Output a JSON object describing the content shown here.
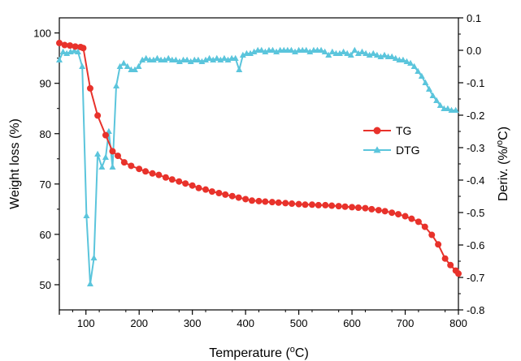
{
  "chart_data": {
    "type": "line",
    "title": "",
    "xlabel": {
      "base": "Temperature (",
      "sup": "o",
      "tail": "C)"
    },
    "ylabel_left": "Weight loss (%)",
    "ylabel_right": {
      "base": "Deriv. (%/",
      "sup": "o",
      "tail": "C)"
    },
    "xlim": [
      50,
      800
    ],
    "ylim_left": [
      45,
      103
    ],
    "ylim_right": [
      -0.8,
      0.1
    ],
    "x_ticks": [
      100,
      200,
      300,
      400,
      500,
      600,
      700,
      800
    ],
    "x_ticks_unlabeled": [
      50
    ],
    "y_left_ticks": [
      50,
      60,
      70,
      80,
      90,
      100
    ],
    "y_right_ticks": [
      "-0.8",
      "-0.7",
      "-0.6",
      "-0.5",
      "-0.4",
      "-0.3",
      "-0.2",
      "-0.1",
      "0.0",
      "0.1"
    ],
    "legend_position": "right",
    "grid": false,
    "series": [
      {
        "name": "TG",
        "axis": "left",
        "color": "#e8322b",
        "marker": "circle",
        "x": [
          50,
          60,
          70,
          80,
          90,
          95,
          108,
          122,
          137,
          150,
          160,
          172,
          185,
          200,
          212,
          225,
          237,
          250,
          262,
          275,
          287,
          300,
          312,
          325,
          337,
          350,
          362,
          375,
          387,
          400,
          412,
          425,
          437,
          450,
          462,
          475,
          487,
          500,
          512,
          525,
          537,
          550,
          562,
          575,
          587,
          600,
          612,
          625,
          637,
          650,
          662,
          675,
          687,
          700,
          712,
          725,
          737,
          750,
          762,
          775,
          785,
          795,
          800
        ],
        "y": [
          98.0,
          97.6,
          97.5,
          97.3,
          97.2,
          97.0,
          89.0,
          83.6,
          79.7,
          76.5,
          75.6,
          74.3,
          73.6,
          73.0,
          72.5,
          72.1,
          71.8,
          71.3,
          70.9,
          70.5,
          70.1,
          69.7,
          69.2,
          68.9,
          68.5,
          68.2,
          67.9,
          67.6,
          67.3,
          67.0,
          66.7,
          66.6,
          66.5,
          66.4,
          66.3,
          66.2,
          66.1,
          66.0,
          65.9,
          65.9,
          65.8,
          65.8,
          65.7,
          65.6,
          65.5,
          65.4,
          65.3,
          65.2,
          65.0,
          64.8,
          64.6,
          64.3,
          64.0,
          63.6,
          63.1,
          62.5,
          61.5,
          59.9,
          58.0,
          55.2,
          53.9,
          52.8,
          52.2
        ]
      },
      {
        "name": "DTG",
        "axis": "right",
        "color": "#5bc5dc",
        "marker": "triangle",
        "x": [
          50,
          57,
          64,
          71,
          78,
          85,
          93,
          101,
          108,
          115,
          122,
          130,
          137,
          143,
          150,
          157,
          164,
          171,
          178,
          185,
          192,
          199,
          206,
          213,
          220,
          227,
          234,
          241,
          248,
          255,
          262,
          269,
          276,
          283,
          290,
          297,
          304,
          311,
          318,
          325,
          332,
          339,
          346,
          353,
          360,
          367,
          374,
          381,
          388,
          395,
          402,
          409,
          416,
          423,
          430,
          437,
          444,
          451,
          458,
          465,
          472,
          479,
          486,
          493,
          500,
          507,
          514,
          521,
          528,
          535,
          542,
          549,
          556,
          563,
          570,
          577,
          584,
          591,
          598,
          605,
          612,
          619,
          626,
          633,
          640,
          647,
          654,
          661,
          668,
          675,
          682,
          689,
          696,
          703,
          710,
          717,
          724,
          731,
          738,
          745,
          752,
          759,
          766,
          773,
          780,
          787,
          795
        ],
        "y": [
          -0.03,
          -0.005,
          -0.01,
          -0.005,
          -0.002,
          -0.005,
          -0.05,
          -0.51,
          -0.72,
          -0.64,
          -0.32,
          -0.36,
          -0.33,
          -0.25,
          -0.36,
          -0.11,
          -0.05,
          -0.04,
          -0.05,
          -0.06,
          -0.06,
          -0.05,
          -0.03,
          -0.025,
          -0.03,
          -0.03,
          -0.025,
          -0.03,
          -0.03,
          -0.025,
          -0.03,
          -0.03,
          -0.035,
          -0.03,
          -0.03,
          -0.035,
          -0.03,
          -0.03,
          -0.035,
          -0.03,
          -0.025,
          -0.03,
          -0.025,
          -0.03,
          -0.025,
          -0.03,
          -0.025,
          -0.025,
          -0.06,
          -0.015,
          -0.01,
          -0.01,
          -0.005,
          0.0,
          0.0,
          -0.005,
          0.0,
          0.0,
          -0.005,
          0.0,
          0.0,
          0.0,
          0.0,
          -0.005,
          0.0,
          0.0,
          0.0,
          -0.005,
          0.0,
          0.0,
          0.0,
          -0.005,
          -0.015,
          -0.005,
          -0.01,
          -0.01,
          -0.005,
          -0.01,
          -0.015,
          0.0,
          -0.01,
          -0.005,
          -0.01,
          -0.015,
          -0.01,
          -0.015,
          -0.02,
          -0.015,
          -0.02,
          -0.02,
          -0.025,
          -0.03,
          -0.03,
          -0.035,
          -0.04,
          -0.05,
          -0.065,
          -0.08,
          -0.1,
          -0.12,
          -0.14,
          -0.155,
          -0.17,
          -0.18,
          -0.18,
          -0.185,
          -0.185
        ]
      }
    ]
  }
}
